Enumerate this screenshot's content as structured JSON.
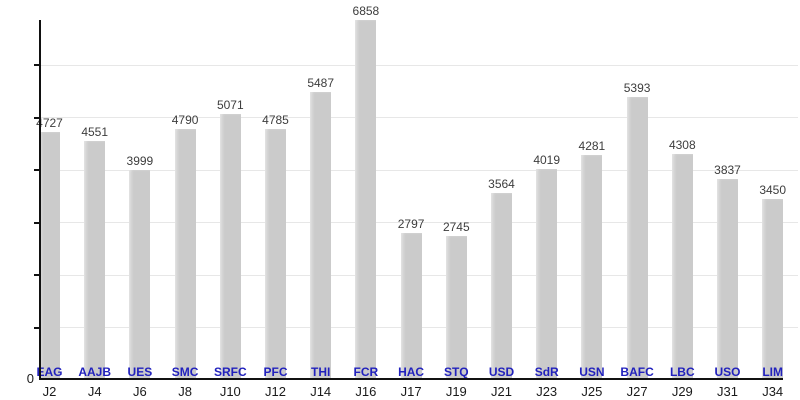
{
  "chart_data": {
    "type": "bar",
    "title": "",
    "xlabel": "",
    "ylabel": "",
    "categories": [
      "J2",
      "J4",
      "J6",
      "J8",
      "J10",
      "J12",
      "J14",
      "J16",
      "J17",
      "J19",
      "J21",
      "J23",
      "J25",
      "J27",
      "J29",
      "J31",
      "J34"
    ],
    "teams": [
      "EAG",
      "AAJB",
      "UES",
      "SMC",
      "SRFC",
      "PFC",
      "THI",
      "FCR",
      "HAC",
      "STQ",
      "USD",
      "SdR",
      "USN",
      "BAFC",
      "LBC",
      "USO",
      "LIM"
    ],
    "values": [
      4727,
      4551,
      3999,
      4790,
      5071,
      4785,
      5487,
      6858,
      2797,
      2745,
      3564,
      4019,
      4281,
      5393,
      4308,
      3837,
      3450
    ],
    "ylim": [
      0,
      7000
    ],
    "grid": true,
    "grid_step": 1000,
    "origin_label": "0",
    "legend": "none",
    "colors": {
      "bar": "#cbcbcb",
      "grid": "#e7e7e7",
      "axis": "#111111",
      "value_label": "#3d3d3d",
      "team_label": "#2121bd",
      "x_tick_label": "#1a1a1a"
    }
  }
}
